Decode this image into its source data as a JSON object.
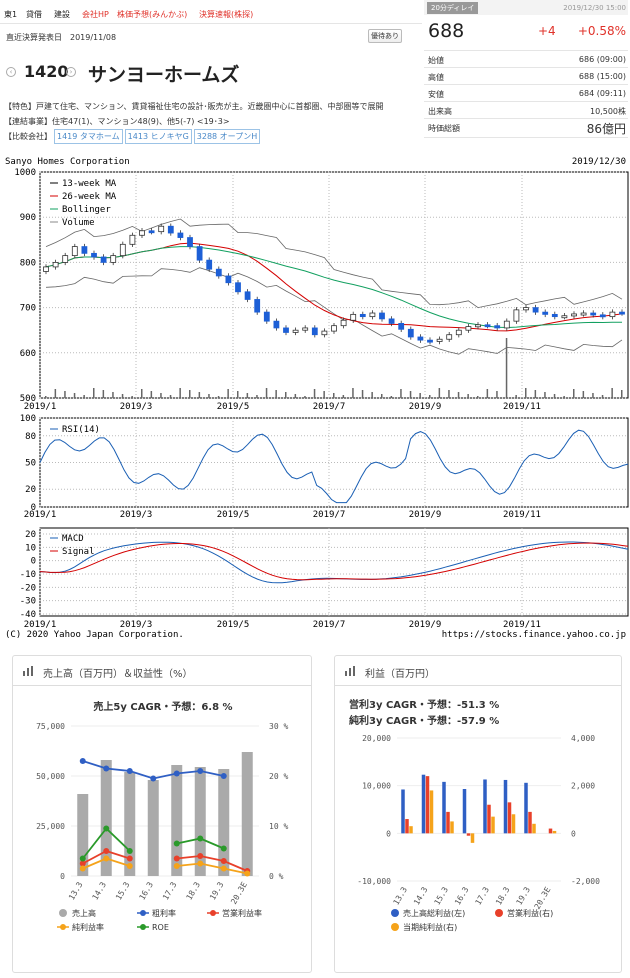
{
  "nav": {
    "items": [
      {
        "label": "東1",
        "color": "dark"
      },
      {
        "label": "貸借",
        "color": "dark"
      },
      {
        "label": "建設",
        "color": "dark"
      },
      {
        "label": "会社HP",
        "color": "red"
      },
      {
        "label": "株価予想(みんかぶ)",
        "color": "red"
      },
      {
        "label": "決算速報(株探)",
        "color": "red"
      }
    ]
  },
  "sub": {
    "settle_label": "直近決算発表日　2019/11/08",
    "yutai_button": "優待あり"
  },
  "company": {
    "code": "1420",
    "name": "サンヨーホームズ",
    "feature": "【特色】戸建て住宅、マンション、賃貸福祉住宅の設計･販売が主。近畿圏中心に首都圏、中部圏等で展開",
    "business": "【連結事業】住宅47(1)、マンション48(9)、他5(-7) <19･3>",
    "compare_label": "【比較会社】",
    "compare": [
      "1419 タマホーム",
      "1413 ヒノキヤG",
      "3288 オープンH"
    ]
  },
  "price": {
    "badge": "20分ディレイ",
    "time": "2019/12/30 15:00",
    "value": "688",
    "change": "+4",
    "pct": "+0.58%",
    "rows": [
      {
        "k": "始値",
        "v": "686 (09:00)"
      },
      {
        "k": "高値",
        "v": "688 (15:00)"
      },
      {
        "k": "安値",
        "v": "684 (09:11)"
      },
      {
        "k": "出来高",
        "v": "10,500株"
      },
      {
        "k": "時価総額",
        "v": "86億円"
      }
    ]
  },
  "stock_chart": {
    "title": "Sanyo Homes Corporation",
    "date": "2019/12/30",
    "y_ticks": [
      "1000",
      "900",
      "800",
      "700",
      "600",
      "500"
    ],
    "x_ticks": [
      "2019/1",
      "2019/3",
      "2019/5",
      "2019/7",
      "2019/9",
      "2019/11"
    ],
    "legend": [
      "13-week MA",
      "26-week MA",
      "Bollinger",
      "Volume"
    ],
    "rsi_legend": "RSI(14)",
    "rsi_ticks": [
      "100",
      "80",
      "50",
      "20",
      "0"
    ],
    "macd_legend": [
      "MACD",
      "Signal"
    ],
    "macd_ticks": [
      "20",
      "10",
      "0",
      "-10",
      "-20",
      "-30",
      "-40"
    ],
    "copyright": "(C) 2020 Yahoo Japan Corporation.",
    "url": "https://stocks.finance.yahoo.co.jp"
  },
  "sales_card": {
    "title": "売上高（百万円）＆収益性（%）",
    "cagr": "売上5y CAGR・予想：6.8 %",
    "y_left": [
      "75,000",
      "50,000",
      "25,000",
      "0"
    ],
    "y_right": [
      "30 %",
      "20 %",
      "10 %",
      "0 %"
    ],
    "legend": [
      "売上高",
      "粗利率",
      "営業利益率",
      "純利益率",
      "ROE"
    ],
    "colors": {
      "sales": "#aaaaaa",
      "gross": "#2f5fc4",
      "op": "#e8402a",
      "net": "#f5a31a",
      "roe": "#2a9a2a"
    }
  },
  "profit_card": {
    "title": "利益（百万円）",
    "cagr1": "営利3y CAGR・予想：-51.3 %",
    "cagr2": "純利3y CAGR・予想：-57.9 %",
    "y_left": [
      "20,000",
      "10,000",
      "0",
      "-10,000"
    ],
    "y_right": [
      "4,000",
      "2,000",
      "0",
      "-2,000"
    ],
    "legend": [
      "売上高総利益(左)",
      "営業利益(右)",
      "当期純利益(右)"
    ]
  },
  "chart_data": [
    {
      "type": "bar",
      "title": "売上高（百万円）＆収益性（%）",
      "categories": [
        "13.3",
        "14.3",
        "15.3",
        "16.3",
        "17.3",
        "18.3",
        "19.3",
        "20.3E"
      ],
      "ylim": [
        0,
        75000
      ],
      "y2lim": [
        0,
        30
      ],
      "series": [
        {
          "name": "売上高",
          "kind": "bar",
          "axis": "left",
          "values": [
            41000,
            58000,
            52000,
            48000,
            55500,
            54500,
            53500,
            62000
          ]
        },
        {
          "name": "粗利率",
          "kind": "line",
          "axis": "right",
          "values": [
            23,
            21.5,
            21,
            19.5,
            20.5,
            21,
            20,
            null
          ]
        },
        {
          "name": "営業利益率",
          "kind": "line",
          "axis": "right",
          "values": [
            2.5,
            5,
            3.5,
            null,
            3.5,
            4,
            3,
            1
          ]
        },
        {
          "name": "純利益率",
          "kind": "line",
          "axis": "right",
          "values": [
            1.5,
            3.5,
            2,
            null,
            2,
            2.5,
            1.5,
            0.5
          ]
        },
        {
          "name": "ROE",
          "kind": "line",
          "axis": "right",
          "values": [
            3.5,
            9.5,
            5,
            null,
            6.5,
            7.5,
            5.5,
            null
          ]
        }
      ]
    },
    {
      "type": "bar",
      "title": "利益（百万円）",
      "categories": [
        "13.3",
        "14.3",
        "15.3",
        "16.3",
        "17.3",
        "18.3",
        "19.3",
        "20.3E"
      ],
      "ylim": [
        -10000,
        20000
      ],
      "y2lim": [
        -2000,
        4000
      ],
      "series": [
        {
          "name": "売上高総利益(左)",
          "axis": "left",
          "values": [
            9200,
            12300,
            10800,
            9300,
            11300,
            11200,
            10600,
            null
          ]
        },
        {
          "name": "営業利益(右)",
          "axis": "right",
          "values": [
            600,
            2400,
            900,
            -100,
            1200,
            1300,
            900,
            200
          ]
        },
        {
          "name": "当期純利益(右)",
          "axis": "right",
          "values": [
            300,
            1800,
            500,
            -400,
            700,
            800,
            400,
            100
          ]
        }
      ]
    }
  ]
}
